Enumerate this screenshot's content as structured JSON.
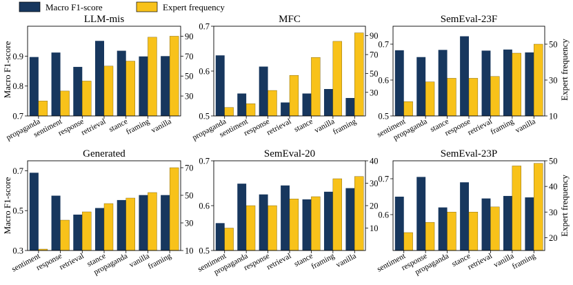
{
  "legend": {
    "entries": [
      {
        "label": "Macro F1-score",
        "color": "#17375e"
      },
      {
        "label": "Expert frequency",
        "color": "#f8c21a"
      }
    ],
    "placement": "top-left"
  },
  "ylabel_left": "Macro F1-score",
  "ylabel_right": "Expert frequency",
  "chart_data": [
    {
      "type": "bar",
      "title": "LLM-mis",
      "categories": [
        "propaganda",
        "sentiment",
        "response",
        "retrieval",
        "stance",
        "framing",
        "vanilla"
      ],
      "series": [
        {
          "name": "Macro F1-score",
          "axis": "left",
          "values": [
            0.897,
            0.912,
            0.864,
            0.951,
            0.918,
            0.899,
            0.9
          ]
        },
        {
          "name": "Expert frequency",
          "axis": "right",
          "values": [
            25,
            35,
            45,
            60,
            65,
            89,
            90
          ]
        }
      ],
      "left_ylim": [
        0.7,
        1.0
      ],
      "left_ticks": [
        0.7,
        0.8,
        0.9
      ],
      "right_ylim": [
        10,
        100
      ],
      "right_ticks": [
        30,
        50,
        70,
        90
      ]
    },
    {
      "type": "bar",
      "title": "MFC",
      "categories": [
        "propaganda",
        "sentiment",
        "response",
        "retrieval",
        "stance",
        "vanilla",
        "framing"
      ],
      "series": [
        {
          "name": "Macro F1-score",
          "axis": "left",
          "values": [
            0.635,
            0.55,
            0.61,
            0.53,
            0.55,
            0.56,
            0.54
          ]
        },
        {
          "name": "Expert frequency",
          "axis": "right",
          "values": [
            14,
            18,
            32,
            48,
            67,
            84,
            93
          ]
        }
      ],
      "left_ylim": [
        0.5,
        0.7
      ],
      "left_ticks": [
        0.5,
        0.6,
        0.7
      ],
      "right_ylim": [
        5,
        100
      ],
      "right_ticks": [
        30,
        50,
        70,
        90
      ]
    },
    {
      "type": "bar",
      "title": "SemEval-23F",
      "categories": [
        "sentiment",
        "propaganda",
        "stance",
        "response",
        "retrieval",
        "framing",
        "vanilla"
      ],
      "series": [
        {
          "name": "Macro F1-score",
          "axis": "left",
          "values": [
            0.683,
            0.664,
            0.684,
            0.722,
            0.682,
            0.685,
            0.677
          ]
        },
        {
          "name": "Expert frequency",
          "axis": "right",
          "values": [
            18,
            29,
            31,
            31,
            32,
            45,
            50
          ]
        }
      ],
      "left_ylim": [
        0.5,
        0.75
      ],
      "left_ticks": [
        0.5,
        0.6,
        0.7
      ],
      "right_ylim": [
        10,
        60
      ],
      "right_ticks": [
        10,
        30,
        50
      ]
    },
    {
      "type": "bar",
      "title": "Generated",
      "categories": [
        "sentiment",
        "response",
        "retrieval",
        "stance",
        "propaganda",
        "vanilla",
        "framing"
      ],
      "series": [
        {
          "name": "Macro F1-score",
          "axis": "left",
          "values": [
            0.69,
            0.575,
            0.48,
            0.513,
            0.553,
            0.578,
            0.578
          ]
        },
        {
          "name": "Expert frequency",
          "axis": "right",
          "values": [
            11,
            32,
            38,
            44,
            48,
            52,
            70
          ]
        }
      ],
      "left_ylim": [
        0.3,
        0.75
      ],
      "left_ticks": [
        0.3,
        0.5,
        0.7
      ],
      "right_ylim": [
        10,
        75
      ],
      "right_ticks": [
        10,
        30,
        50,
        70
      ]
    },
    {
      "type": "bar",
      "title": "SemEval-20",
      "categories": [
        "sentiment",
        "propaganda",
        "response",
        "retrieval",
        "stance",
        "framing",
        "vanilla"
      ],
      "series": [
        {
          "name": "Macro F1-score",
          "axis": "left",
          "values": [
            0.561,
            0.649,
            0.625,
            0.645,
            0.614,
            0.631,
            0.639
          ]
        },
        {
          "name": "Expert frequency",
          "axis": "right",
          "values": [
            10,
            20,
            20,
            23,
            24,
            32,
            33
          ]
        }
      ],
      "left_ylim": [
        0.5,
        0.7
      ],
      "left_ticks": [
        0.5,
        0.6,
        0.7
      ],
      "right_ylim": [
        0,
        40
      ],
      "right_ticks": [
        10,
        20,
        30,
        40
      ]
    },
    {
      "type": "bar",
      "title": "SemEval-23P",
      "categories": [
        "sentiment",
        "response",
        "propaganda",
        "stance",
        "retrieval",
        "vanilla",
        "framing"
      ],
      "series": [
        {
          "name": "Macro F1-score",
          "axis": "left",
          "values": [
            0.65,
            0.705,
            0.62,
            0.69,
            0.645,
            0.652,
            0.648
          ]
        },
        {
          "name": "Expert frequency",
          "axis": "right",
          "values": [
            22,
            26,
            30,
            30,
            32,
            48,
            49
          ]
        }
      ],
      "left_ylim": [
        0.5,
        0.75
      ],
      "left_ticks": [
        0.6,
        0.7
      ],
      "right_ylim": [
        15,
        50
      ],
      "right_ticks": [
        20,
        30,
        40,
        50
      ]
    }
  ]
}
